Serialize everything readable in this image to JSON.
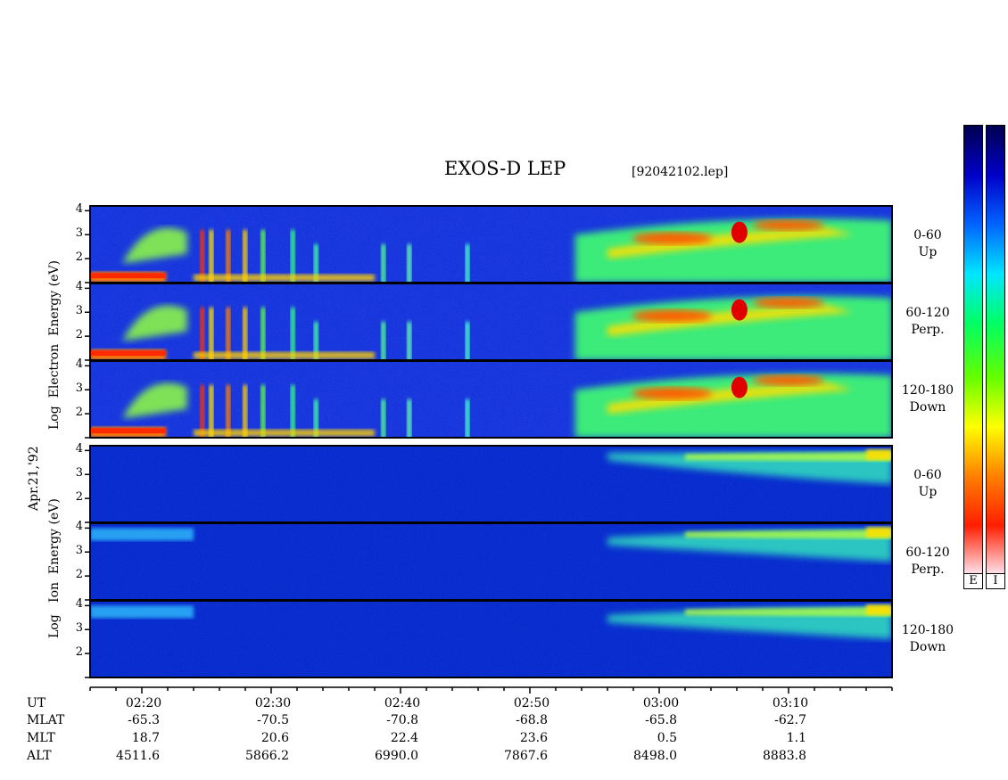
{
  "title": "EXOS-D LEP",
  "filename": "[92042102.lep]",
  "date_label": "Apr.21,'92",
  "electron_axis": {
    "words": [
      "Log",
      "Electron",
      "Energy",
      "(eV)"
    ]
  },
  "ion_axis": {
    "words": [
      "Log",
      "Ion",
      "Energy",
      "(eV)"
    ]
  },
  "channels": [
    {
      "range": "0-60",
      "dir": "Up"
    },
    {
      "range": "60-120",
      "dir": "Perp."
    },
    {
      "range": "120-180",
      "dir": "Down"
    },
    {
      "range": "0-60",
      "dir": "Up"
    },
    {
      "range": "60-120",
      "dir": "Perp."
    },
    {
      "range": "120-180",
      "dir": "Down"
    }
  ],
  "colorbars": {
    "labels": [
      "E",
      "I"
    ],
    "colors": [
      "#000050",
      "#0000c8",
      "#0064ff",
      "#00e6ff",
      "#00ff64",
      "#64ff00",
      "#ffff00",
      "#ff8000",
      "#ff1e00",
      "#ffe6f0"
    ]
  },
  "info": {
    "labels": [
      "UT",
      "MLAT",
      "MLT",
      "ALT"
    ],
    "ut": [
      "02:20",
      "02:30",
      "02:40",
      "02:50",
      "03:00",
      "03:10"
    ],
    "mlat": [
      "-65.3",
      "-70.5",
      "-70.8",
      "-68.8",
      "-65.8",
      "-62.7"
    ],
    "mlt": [
      "18.7",
      "20.6",
      "22.4",
      "23.6",
      "0.5",
      "1.1"
    ],
    "alt": [
      "4511.6",
      "5866.2",
      "6990.0",
      "7867.6",
      "8498.0",
      "8883.8"
    ]
  },
  "chart_data": {
    "type": "heatmap",
    "title": "EXOS-D LEP",
    "xlabel": "UT",
    "ylabel": "Log Energy (eV)",
    "ylim": [
      1,
      4.2
    ],
    "y_ticks": [
      2,
      3,
      4
    ],
    "x_range_minutes_after_0200": [
      16,
      78
    ],
    "x_major_ticks": [
      "02:20",
      "02:30",
      "02:40",
      "02:50",
      "03:00",
      "03:10"
    ],
    "panels": [
      {
        "species": "Electron",
        "pitch_angle": "0-60",
        "direction": "Up"
      },
      {
        "species": "Electron",
        "pitch_angle": "60-120",
        "direction": "Perp."
      },
      {
        "species": "Electron",
        "pitch_angle": "120-180",
        "direction": "Down"
      },
      {
        "species": "Ion",
        "pitch_angle": "0-60",
        "direction": "Up"
      },
      {
        "species": "Ion",
        "pitch_angle": "60-120",
        "direction": "Perp."
      },
      {
        "species": "Ion",
        "pitch_angle": "120-180",
        "direction": "Down"
      }
    ]
  }
}
